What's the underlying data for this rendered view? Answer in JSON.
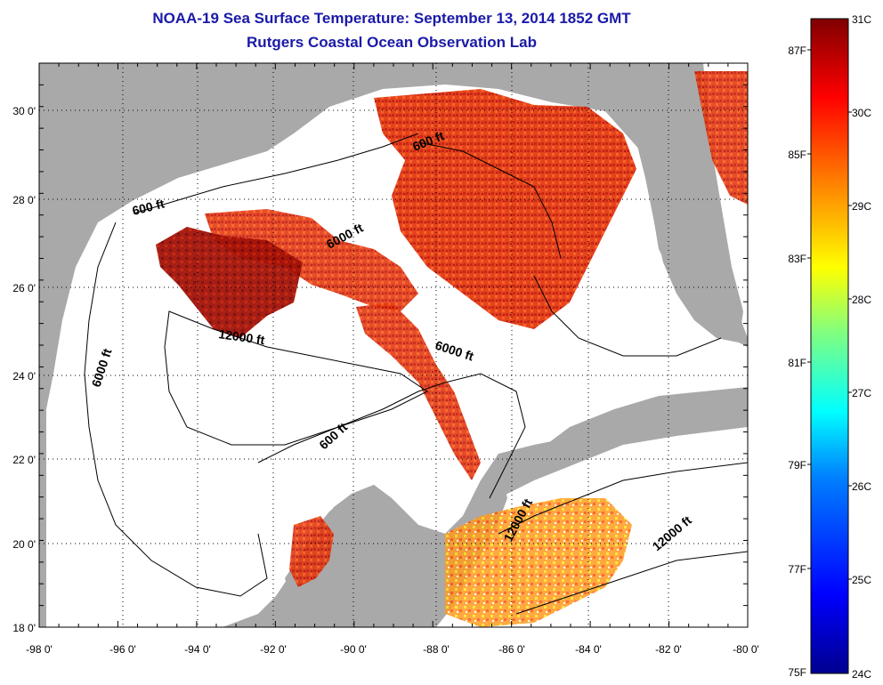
{
  "header": {
    "title_line1": "NOAA-19 Sea Surface Temperature:  September 13, 2014 1852 GMT",
    "title_line2": "Rutgers Coastal Ocean Observation Lab"
  },
  "map": {
    "lon_ticks": [
      "-98 0'",
      "-96 0'",
      "-94 0'",
      "-92 0'",
      "-90 0'",
      "-88 0'",
      "-86 0'",
      "-84 0'",
      "-82 0'",
      "-80 0'"
    ],
    "lat_ticks": [
      "30 0'",
      "28 0'",
      "26 0'",
      "24 0'",
      "22 0'",
      "20 0'",
      "18 0'"
    ],
    "contour_labels": [
      {
        "text": "600 ft"
      },
      {
        "text": "600 ft"
      },
      {
        "text": "6000 ft"
      },
      {
        "text": "12000 ft"
      },
      {
        "text": "6000 ft"
      },
      {
        "text": "6000 ft"
      },
      {
        "text": "600 ft"
      },
      {
        "text": "12000 ft"
      },
      {
        "text": "12000 ft"
      }
    ],
    "colors": {
      "land": "#a9a9a9",
      "ocean_no_data": "#ffffff",
      "sst_high": "#8b0000",
      "sst_mid": "#ff3300"
    }
  },
  "colorbar": {
    "celsius_labels": [
      "31C",
      "30C",
      "29C",
      "28C",
      "27C",
      "26C",
      "25C",
      "24C"
    ],
    "fahrenheit_labels": [
      "87F",
      "85F",
      "83F",
      "81F",
      "79F",
      "77F",
      "75F"
    ],
    "colors": [
      "#00008f",
      "#0000ff",
      "#0080ff",
      "#00ffff",
      "#80ff80",
      "#ffff00",
      "#ff8000",
      "#ff0000",
      "#800000"
    ]
  }
}
